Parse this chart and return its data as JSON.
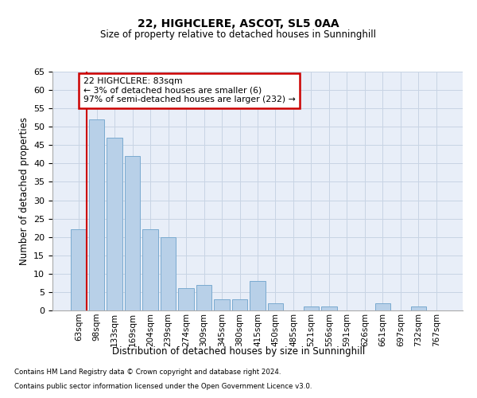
{
  "title1": "22, HIGHCLERE, ASCOT, SL5 0AA",
  "title2": "Size of property relative to detached houses in Sunninghill",
  "xlabel": "Distribution of detached houses by size in Sunninghill",
  "ylabel": "Number of detached properties",
  "categories": [
    "63sqm",
    "98sqm",
    "133sqm",
    "169sqm",
    "204sqm",
    "239sqm",
    "274sqm",
    "309sqm",
    "345sqm",
    "380sqm",
    "415sqm",
    "450sqm",
    "485sqm",
    "521sqm",
    "556sqm",
    "591sqm",
    "626sqm",
    "661sqm",
    "697sqm",
    "732sqm",
    "767sqm"
  ],
  "values": [
    22,
    52,
    47,
    42,
    22,
    20,
    6,
    7,
    3,
    3,
    8,
    2,
    0,
    1,
    1,
    0,
    0,
    2,
    0,
    1,
    0
  ],
  "bar_color": "#b8d0e8",
  "bar_edge_color": "#7aaad0",
  "annotation_text_line1": "22 HIGHCLERE: 83sqm",
  "annotation_text_line2": "← 3% of detached houses are smaller (6)",
  "annotation_text_line3": "97% of semi-detached houses are larger (232) →",
  "annotation_box_color": "#ffffff",
  "annotation_border_color": "#cc0000",
  "vline_color": "#cc0000",
  "grid_color": "#c8d4e4",
  "background_color": "#e8eef8",
  "footer1": "Contains HM Land Registry data © Crown copyright and database right 2024.",
  "footer2": "Contains public sector information licensed under the Open Government Licence v3.0.",
  "ylim": [
    0,
    65
  ],
  "yticks": [
    0,
    5,
    10,
    15,
    20,
    25,
    30,
    35,
    40,
    45,
    50,
    55,
    60,
    65
  ],
  "vline_pos": 0.43
}
